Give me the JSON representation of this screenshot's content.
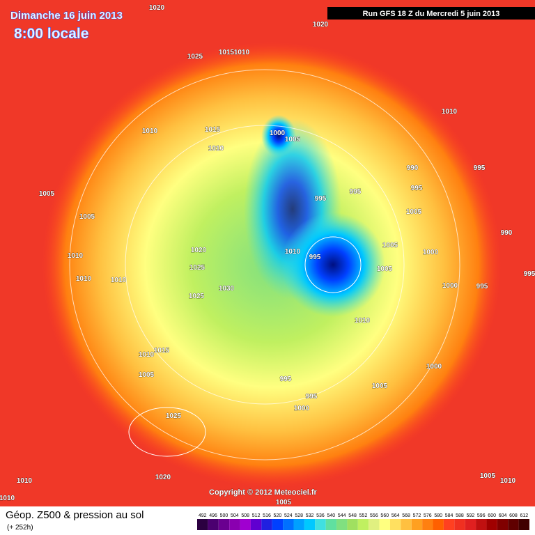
{
  "header": {
    "date": "Dimanche 16 juin 2013",
    "time": "8:00 locale",
    "run": "Run GFS 18 Z du Mercredi 5 juin 2013"
  },
  "isobar_labels": [
    1020,
    1020,
    1025,
    1015,
    1010,
    1010,
    1015,
    1010,
    1000,
    1005,
    1010,
    990,
    995,
    995,
    995,
    995,
    1005,
    1005,
    1005,
    990,
    1010,
    1020,
    1010,
    995,
    1005,
    1000,
    1005,
    1025,
    1010,
    1010,
    1030,
    995,
    1000,
    995,
    1025,
    1010,
    1015,
    1010,
    1000,
    1005,
    995,
    1005,
    995,
    1000,
    1025,
    1020,
    1010,
    1005,
    1010,
    1010,
    1005
  ],
  "footer": {
    "title": "Géop. Z500 & pression au sol",
    "subtitle": "(+ 252h)",
    "copyright": "Copyright © 2012 Meteociel.fr"
  },
  "legend": {
    "ticks": [
      492,
      496,
      500,
      504,
      508,
      512,
      516,
      520,
      524,
      528,
      532,
      536,
      540,
      544,
      548,
      552,
      556,
      560,
      564,
      568,
      572,
      576,
      580,
      584,
      588,
      592,
      596,
      600,
      604,
      608,
      612
    ],
    "colors": [
      "#2b0040",
      "#4b0070",
      "#6a0090",
      "#8a00b0",
      "#a000d0",
      "#6000d0",
      "#2020e0",
      "#0040ff",
      "#0070ff",
      "#00a0ff",
      "#00c8ff",
      "#40e0e0",
      "#60e0a0",
      "#80e080",
      "#a0e060",
      "#c0f060",
      "#e0f080",
      "#ffff80",
      "#ffe060",
      "#ffc040",
      "#ffa020",
      "#ff8010",
      "#ff6000",
      "#ff4020",
      "#f03020",
      "#e02020",
      "#c01010",
      "#a00000",
      "#800000",
      "#600000",
      "#400000"
    ]
  }
}
